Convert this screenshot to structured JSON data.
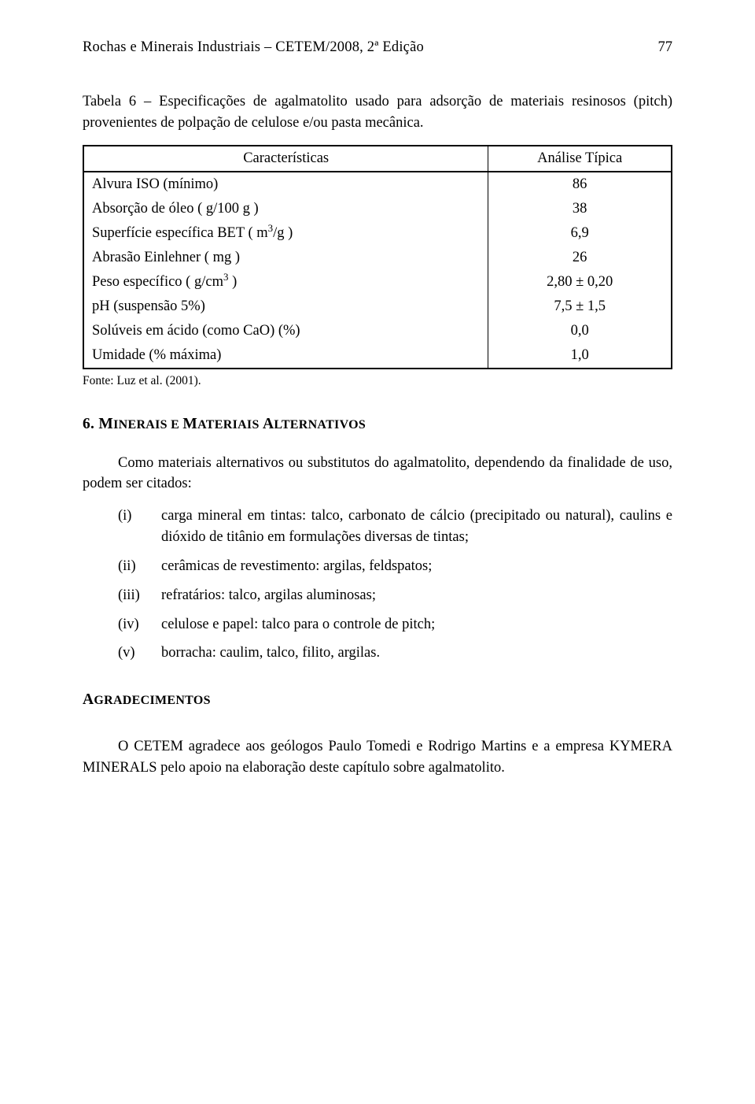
{
  "header": {
    "title": "Rochas e Minerais Industriais – CETEM/2008, 2ª Edição",
    "page": "77"
  },
  "table": {
    "caption": "Tabela 6 – Especificações de agalmatolito usado para adsorção de materiais resinosos (pitch) provenientes de polpação de celulose e/ou pasta mecânica.",
    "header_left": "Características",
    "header_right": "Análise Típica",
    "rows": [
      {
        "label": "Alvura ISO (mínimo)",
        "value": "86"
      },
      {
        "label": "Absorção de óleo ( g/100 g )",
        "value": "38"
      },
      {
        "label_html": "Superfície específica BET ( m<sup>3</sup>/g )",
        "value": "6,9"
      },
      {
        "label": "Abrasão Einlehner ( mg )",
        "value": "26"
      },
      {
        "label_html": "Peso específico ( g/cm<sup>3</sup> )",
        "value": "2,80 ± 0,20"
      },
      {
        "label": "pH (suspensão 5%)",
        "value": "7,5 ± 1,5"
      },
      {
        "label": "Solúveis em ácido (como CaO) (%)",
        "value": "0,0"
      },
      {
        "label": "Umidade (% máxima)",
        "value": "1,0"
      }
    ],
    "source": "Fonte: Luz et al. (2001)."
  },
  "section6": {
    "number": "6.",
    "title_word1": "M",
    "title_rest1": "INERAIS E ",
    "title_word2": "M",
    "title_rest2": "ATERIAIS ",
    "title_word3": "A",
    "title_rest3": "LTERNATIVOS",
    "intro": "Como materiais alternativos ou substitutos do agalmatolito, dependendo da finalidade de uso, podem ser citados:",
    "items": [
      {
        "marker": "(i)",
        "text": "carga mineral em tintas: talco, carbonato de cálcio (precipitado ou natural), caulins e dióxido de titânio em formulações diversas de tintas;"
      },
      {
        "marker": "(ii)",
        "text": "cerâmicas de revestimento: argilas, feldspatos;"
      },
      {
        "marker": "(iii)",
        "text": "refratários: talco, argilas aluminosas;"
      },
      {
        "marker": "(iv)",
        "text": "celulose e papel: talco para o controle de pitch;"
      },
      {
        "marker": "(v)",
        "text": "borracha: caulim, talco, filito, argilas."
      }
    ]
  },
  "ack": {
    "heading_first": "A",
    "heading_rest": "GRADECIMENTOS",
    "body": "O CETEM agradece aos geólogos Paulo Tomedi e Rodrigo Martins e a empresa KYMERA MINERALS pelo apoio na elaboração deste capítulo sobre agalmatolito."
  }
}
